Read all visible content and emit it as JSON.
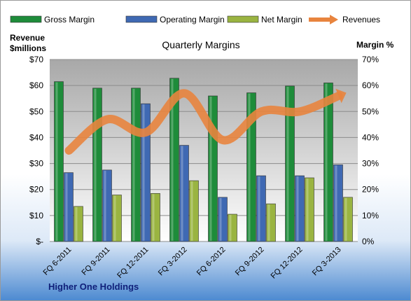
{
  "chart_data": {
    "type": "bar",
    "title": "Quarterly Margins",
    "subtitle": "",
    "ylabel_left": [
      "Revenue",
      "$millions"
    ],
    "ylabel_right": "Margin %",
    "footer": "Higher One Holdings",
    "categories": [
      "FQ 6-2011",
      "FQ 9-2011",
      "FQ 12-2011",
      "FQ 3-2012",
      "FQ 6-2012",
      "FQ 9-2012",
      "FQ 12-2012",
      "FQ 3-2013"
    ],
    "left_axis": {
      "ylim": [
        0,
        70
      ],
      "ticks": [
        "$-",
        "$10",
        "$20",
        "$30",
        "$40",
        "$50",
        "$60",
        "$70"
      ]
    },
    "right_axis": {
      "ylim": [
        0,
        70
      ],
      "ticks": [
        "0%",
        "10%",
        "20%",
        "30%",
        "40%",
        "50%",
        "60%",
        "70%"
      ]
    },
    "series": [
      {
        "name": "Gross Margin",
        "type": "bar",
        "axis": "right",
        "color": "#1e8c3a",
        "values": [
          61.5,
          59,
          59,
          62.8,
          56,
          57.2,
          59.8,
          61
        ]
      },
      {
        "name": "Operating Margin",
        "type": "bar",
        "axis": "right",
        "color": "#3f69b3",
        "values": [
          26.5,
          27.5,
          53,
          37,
          17,
          25.3,
          25.3,
          29.5
        ]
      },
      {
        "name": "Net Margin",
        "type": "bar",
        "axis": "right",
        "color": "#9ab441",
        "values": [
          13.5,
          17.9,
          18.5,
          23.4,
          10.5,
          14.5,
          24.5,
          17
        ]
      },
      {
        "name": "Revenues",
        "type": "line",
        "axis": "left",
        "color": "#e8843e",
        "values": [
          35,
          47,
          42,
          57,
          39,
          50,
          50,
          56
        ]
      }
    ],
    "grid": true,
    "legend": "top"
  }
}
